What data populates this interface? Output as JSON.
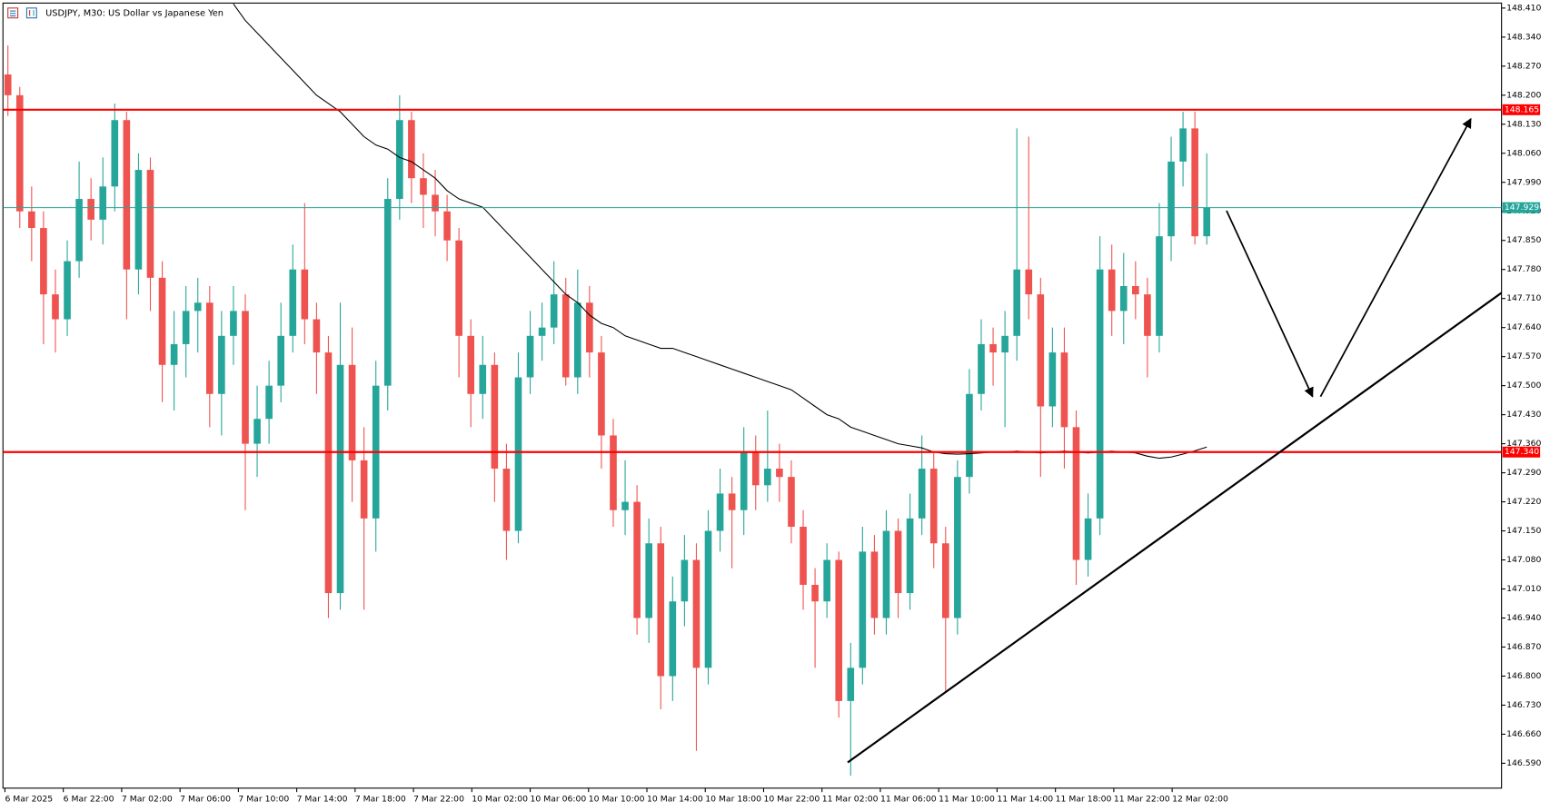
{
  "chart_data": {
    "type": "candlestick",
    "title": "USDJPY, M30:  US Dollar vs Japanese Yen",
    "up_color": "#26a69a",
    "down_color": "#ef5350",
    "candles": [
      [
        148.25,
        148.32,
        148.15,
        148.2
      ],
      [
        148.2,
        148.22,
        147.88,
        147.92
      ],
      [
        147.92,
        147.98,
        147.8,
        147.88
      ],
      [
        147.88,
        147.92,
        147.6,
        147.72
      ],
      [
        147.72,
        147.78,
        147.58,
        147.66
      ],
      [
        147.66,
        147.85,
        147.62,
        147.8
      ],
      [
        147.8,
        148.04,
        147.76,
        147.95
      ],
      [
        147.95,
        148.0,
        147.85,
        147.9
      ],
      [
        147.9,
        148.05,
        147.84,
        147.98
      ],
      [
        147.98,
        148.18,
        147.92,
        148.14
      ],
      [
        148.14,
        148.16,
        147.66,
        147.78
      ],
      [
        147.78,
        148.06,
        147.72,
        148.02
      ],
      [
        148.02,
        148.05,
        147.68,
        147.76
      ],
      [
        147.76,
        147.8,
        147.46,
        147.55
      ],
      [
        147.55,
        147.68,
        147.44,
        147.6
      ],
      [
        147.6,
        147.74,
        147.52,
        147.68
      ],
      [
        147.68,
        147.76,
        147.58,
        147.7
      ],
      [
        147.7,
        147.74,
        147.4,
        147.48
      ],
      [
        147.48,
        147.68,
        147.38,
        147.62
      ],
      [
        147.62,
        147.74,
        147.55,
        147.68
      ],
      [
        147.68,
        147.72,
        147.2,
        147.36
      ],
      [
        147.36,
        147.5,
        147.28,
        147.42
      ],
      [
        147.42,
        147.56,
        147.36,
        147.5
      ],
      [
        147.5,
        147.7,
        147.46,
        147.62
      ],
      [
        147.62,
        147.84,
        147.58,
        147.78
      ],
      [
        147.78,
        147.94,
        147.6,
        147.66
      ],
      [
        147.66,
        147.7,
        147.48,
        147.58
      ],
      [
        147.58,
        147.62,
        146.94,
        147.0
      ],
      [
        147.0,
        147.7,
        146.96,
        147.55
      ],
      [
        147.55,
        147.64,
        147.22,
        147.32
      ],
      [
        147.32,
        147.4,
        146.96,
        147.18
      ],
      [
        147.18,
        147.56,
        147.1,
        147.5
      ],
      [
        147.5,
        148.0,
        147.44,
        147.95
      ],
      [
        147.95,
        148.2,
        147.9,
        148.14
      ],
      [
        148.14,
        148.16,
        147.94,
        148.0
      ],
      [
        148.0,
        148.06,
        147.88,
        147.96
      ],
      [
        147.96,
        148.02,
        147.86,
        147.92
      ],
      [
        147.92,
        147.96,
        147.8,
        147.85
      ],
      [
        147.85,
        147.88,
        147.52,
        147.62
      ],
      [
        147.62,
        147.66,
        147.4,
        147.48
      ],
      [
        147.48,
        147.62,
        147.42,
        147.55
      ],
      [
        147.55,
        147.58,
        147.22,
        147.3
      ],
      [
        147.3,
        147.36,
        147.08,
        147.15
      ],
      [
        147.15,
        147.58,
        147.12,
        147.52
      ],
      [
        147.52,
        147.68,
        147.48,
        147.62
      ],
      [
        147.62,
        147.7,
        147.56,
        147.64
      ],
      [
        147.64,
        147.8,
        147.6,
        147.72
      ],
      [
        147.72,
        147.76,
        147.5,
        147.52
      ],
      [
        147.52,
        147.78,
        147.48,
        147.7
      ],
      [
        147.7,
        147.74,
        147.52,
        147.58
      ],
      [
        147.58,
        147.62,
        147.3,
        147.38
      ],
      [
        147.38,
        147.42,
        147.16,
        147.2
      ],
      [
        147.2,
        147.32,
        147.14,
        147.22
      ],
      [
        147.22,
        147.26,
        146.9,
        146.94
      ],
      [
        146.94,
        147.18,
        146.88,
        147.12
      ],
      [
        147.12,
        147.16,
        146.72,
        146.8
      ],
      [
        146.8,
        147.04,
        146.74,
        146.98
      ],
      [
        146.98,
        147.14,
        146.92,
        147.08
      ],
      [
        147.08,
        147.12,
        146.62,
        146.82
      ],
      [
        146.82,
        147.2,
        146.78,
        147.15
      ],
      [
        147.15,
        147.3,
        147.1,
        147.24
      ],
      [
        147.24,
        147.28,
        147.06,
        147.2
      ],
      [
        147.2,
        147.4,
        147.14,
        147.34
      ],
      [
        147.34,
        147.38,
        147.2,
        147.26
      ],
      [
        147.26,
        147.44,
        147.22,
        147.3
      ],
      [
        147.3,
        147.36,
        147.22,
        147.28
      ],
      [
        147.28,
        147.32,
        147.12,
        147.16
      ],
      [
        147.16,
        147.2,
        146.96,
        147.02
      ],
      [
        147.02,
        147.06,
        146.82,
        146.98
      ],
      [
        146.98,
        147.12,
        146.94,
        147.08
      ],
      [
        147.08,
        147.1,
        146.7,
        146.74
      ],
      [
        146.74,
        146.88,
        146.56,
        146.82
      ],
      [
        146.82,
        147.16,
        146.78,
        147.1
      ],
      [
        147.1,
        147.14,
        146.9,
        146.94
      ],
      [
        146.94,
        147.2,
        146.9,
        147.15
      ],
      [
        147.15,
        147.18,
        146.94,
        147.0
      ],
      [
        147.0,
        147.24,
        146.96,
        147.18
      ],
      [
        147.18,
        147.38,
        147.14,
        147.3
      ],
      [
        147.3,
        147.34,
        147.06,
        147.12
      ],
      [
        147.12,
        147.16,
        146.76,
        146.94
      ],
      [
        146.94,
        147.32,
        146.9,
        147.28
      ],
      [
        147.28,
        147.54,
        147.24,
        147.48
      ],
      [
        147.48,
        147.66,
        147.44,
        147.6
      ],
      [
        147.6,
        147.64,
        147.5,
        147.58
      ],
      [
        147.58,
        147.68,
        147.4,
        147.62
      ],
      [
        147.62,
        148.12,
        147.56,
        147.78
      ],
      [
        147.78,
        148.1,
        147.66,
        147.72
      ],
      [
        147.72,
        147.76,
        147.28,
        147.45
      ],
      [
        147.45,
        147.64,
        147.4,
        147.58
      ],
      [
        147.58,
        147.64,
        147.3,
        147.4
      ],
      [
        147.4,
        147.44,
        147.02,
        147.08
      ],
      [
        147.08,
        147.24,
        147.04,
        147.18
      ],
      [
        147.18,
        147.86,
        147.14,
        147.78
      ],
      [
        147.78,
        147.84,
        147.62,
        147.68
      ],
      [
        147.68,
        147.82,
        147.6,
        147.74
      ],
      [
        147.74,
        147.8,
        147.66,
        147.72
      ],
      [
        147.72,
        147.76,
        147.52,
        147.62
      ],
      [
        147.62,
        147.94,
        147.58,
        147.86
      ],
      [
        147.86,
        148.1,
        147.8,
        148.04
      ],
      [
        148.04,
        148.16,
        147.98,
        148.12
      ],
      [
        148.12,
        148.16,
        147.84,
        147.86
      ],
      [
        147.86,
        148.06,
        147.84,
        147.929
      ]
    ],
    "moving_average": [
      null,
      null,
      null,
      null,
      null,
      null,
      null,
      null,
      null,
      null,
      null,
      null,
      null,
      null,
      null,
      null,
      null,
      null,
      null,
      148.42,
      148.38,
      148.35,
      148.32,
      148.29,
      148.26,
      148.23,
      148.2,
      148.18,
      148.16,
      148.13,
      148.1,
      148.08,
      148.07,
      148.05,
      148.04,
      148.02,
      148.0,
      147.97,
      147.95,
      147.94,
      147.93,
      147.9,
      147.87,
      147.84,
      147.81,
      147.78,
      147.75,
      147.72,
      147.7,
      147.67,
      147.65,
      147.64,
      147.62,
      147.61,
      147.6,
      147.59,
      147.59,
      147.58,
      147.57,
      147.56,
      147.55,
      147.54,
      147.53,
      147.52,
      147.51,
      147.5,
      147.49,
      147.47,
      147.45,
      147.43,
      147.42,
      147.4,
      147.39,
      147.38,
      147.37,
      147.36,
      147.355,
      147.35,
      147.34,
      147.336,
      147.335,
      147.336,
      147.338,
      147.34,
      147.34,
      147.342,
      147.34,
      147.338,
      147.34,
      147.342,
      147.34,
      147.338,
      147.34,
      147.342,
      147.34,
      147.338,
      147.33,
      147.325,
      147.328,
      147.335,
      147.343,
      147.352
    ],
    "ma_color": "#000000",
    "levels": [
      148.165,
      {
        "value": 147.34,
        "label": "147.340"
      }
    ],
    "level_color": "#ff0000",
    "current_price": 147.929,
    "price_color": "#26a69a",
    "ylim": [
      146.53,
      148.422
    ],
    "yticks": [
      {
        "value": 148.41,
        "label": "148.410"
      },
      {
        "value": 148.34,
        "label": "148.340"
      },
      {
        "value": 148.27,
        "label": "148.270"
      },
      {
        "value": 148.2,
        "label": "148.200"
      },
      {
        "value": 148.13,
        "label": "148.130"
      },
      {
        "value": 148.06,
        "label": "148.060"
      },
      {
        "value": 147.99,
        "label": "147.990"
      },
      {
        "value": 147.92,
        "label": "147.920"
      },
      {
        "value": 147.85,
        "label": "147.850"
      },
      {
        "value": 147.78,
        "label": "147.780"
      },
      {
        "value": 147.71,
        "label": "147.710"
      },
      {
        "value": 147.64,
        "label": "147.640"
      },
      {
        "value": 147.57,
        "label": "147.570"
      },
      {
        "value": 147.5,
        "label": "147.500"
      },
      {
        "value": 147.43,
        "label": "147.430"
      },
      {
        "value": 147.36,
        "label": "147.360"
      },
      {
        "value": 147.29,
        "label": "147.290"
      },
      {
        "value": 147.22,
        "label": "147.220"
      },
      {
        "value": 147.15,
        "label": "147.150"
      },
      {
        "value": 147.08,
        "label": "147.080"
      },
      {
        "value": 147.01,
        "label": "147.010"
      },
      {
        "value": 146.94,
        "label": "146.940"
      },
      {
        "value": 146.87,
        "label": "146.870"
      },
      {
        "value": 146.8,
        "label": "146.800"
      },
      {
        "value": 146.73,
        "label": "146.730"
      },
      {
        "value": 146.66,
        "label": "146.660"
      },
      {
        "value": 146.59,
        "label": "146.590"
      }
    ],
    "x_labels": [
      "6 Mar 2025",
      "6 Mar 22:00",
      "7 Mar 02:00",
      "7 Mar 06:00",
      "7 Mar 10:00",
      "7 Mar 14:00",
      "7 Mar 18:00",
      "7 Mar 22:00",
      "10 Mar 02:00",
      "10 Mar 06:00",
      "10 Mar 10:00",
      "10 Mar 14:00",
      "10 Mar 18:00",
      "10 Mar 22:00",
      "11 Mar 02:00",
      "11 Mar 06:00",
      "11 Mar 10:00",
      "11 Mar 14:00",
      "11 Mar 18:00",
      "11 Mar 22:00",
      "12 Mar 02:00"
    ]
  }
}
